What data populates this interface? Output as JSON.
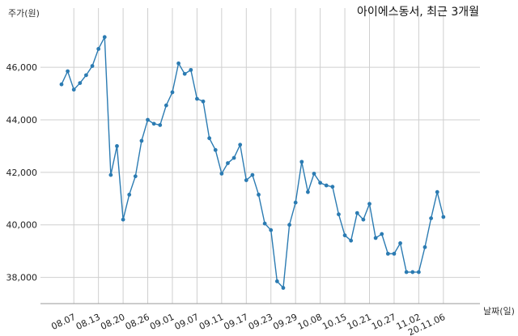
{
  "chart_data": {
    "type": "line",
    "title": "아이에스동서, 최근 3개월",
    "ylabel": "주가(원)",
    "xlabel": "날짜(일)",
    "ylim": [
      37000,
      47700
    ],
    "yticks": [
      38000,
      40000,
      42000,
      44000,
      46000
    ],
    "ytick_labels": [
      "38,000",
      "40,000",
      "42,000",
      "44,000",
      "46,000"
    ],
    "xticks": [
      {
        "label": "08.07",
        "index": 2
      },
      {
        "label": "08.13",
        "index": 6
      },
      {
        "label": "08.20",
        "index": 10
      },
      {
        "label": "08.26",
        "index": 14
      },
      {
        "label": "09.01",
        "index": 18
      },
      {
        "label": "09.07",
        "index": 22
      },
      {
        "label": "09.11",
        "index": 26
      },
      {
        "label": "09.17",
        "index": 30
      },
      {
        "label": "09.23",
        "index": 34
      },
      {
        "label": "09.29",
        "index": 38
      },
      {
        "label": "10.08",
        "index": 42
      },
      {
        "label": "10.15",
        "index": 46
      },
      {
        "label": "10.21",
        "index": 50
      },
      {
        "label": "10.27",
        "index": 54
      },
      {
        "label": "11.02",
        "index": 58
      },
      {
        "label": "20.11.06",
        "index": 62
      }
    ],
    "series": [
      {
        "color": "#2b7bb2",
        "values": [
          45350,
          45850,
          45150,
          45400,
          45700,
          46050,
          46700,
          47150,
          41900,
          43000,
          40200,
          41150,
          41850,
          43200,
          44000,
          43850,
          43800,
          44550,
          45050,
          46150,
          45750,
          45900,
          44800,
          44700,
          43300,
          42850,
          41950,
          42350,
          42550,
          43050,
          41700,
          41900,
          41150,
          40050,
          39800,
          37850,
          37600,
          40000,
          40850,
          42400,
          41250,
          41950,
          41600,
          41500,
          41450,
          40400,
          39600,
          39400,
          40450,
          40200,
          40800,
          39500,
          39650,
          38900,
          38900,
          39300,
          38200,
          38200,
          38200,
          39150,
          40250,
          41250,
          40300
        ]
      }
    ]
  }
}
